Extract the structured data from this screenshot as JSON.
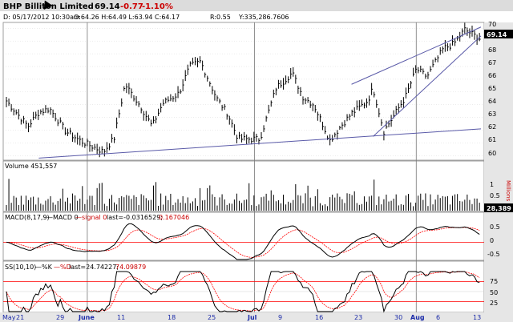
{
  "header": {
    "name": "BHP Billiton Limited",
    "price": "69.14",
    "change": "-0.77",
    "change_pct": "-1.10%"
  },
  "info_line": {
    "date": "D: 05/17/2012 10:30am",
    "ohlc": "O:64.26 H:64.49 L:63.94 C:64.17",
    "r": "R:0.55",
    "y": "Y:335,286.7606"
  },
  "colors": {
    "title_bg": "#dcdcdc",
    "panel_bg": "#ffffff",
    "axis_bg": "#e6e6e6",
    "price": "#000000",
    "trend": "#5a5aa8",
    "signal": "#ff0000",
    "ref": "#ff0000",
    "neg": "#cc0000",
    "grid": "#d0d0d0"
  },
  "price_panel": {
    "last_label": "69.14",
    "ticks": [
      "70",
      "69",
      "68",
      "67",
      "66",
      "65",
      "64",
      "63",
      "62",
      "61",
      "60"
    ]
  },
  "volume_panel": {
    "label": "Volume 451,557",
    "units": "Millions",
    "ticks": [
      "1",
      "0.5"
    ],
    "last_label": "28,389"
  },
  "macd_panel": {
    "label_parts": {
      "name": "MACD(8,17,9)",
      "macd": "—MACD 0",
      "signal": "—signal 0",
      "last": "last=-0.0316529;",
      "last2": "0.167046"
    },
    "ticks": [
      "0.5",
      "0",
      "-0.5"
    ]
  },
  "stoch_panel": {
    "label_parts": {
      "name": "SS(10,10)",
      "k": "—%K",
      "d": "—%D",
      "last": "last=24.74227;",
      "last2": "74.09879"
    },
    "ticks": [
      "75",
      "50",
      "25"
    ]
  },
  "x_axis": {
    "labels": [
      "May",
      "21",
      "29",
      "June",
      "11",
      "18",
      "25",
      "Jul",
      "9",
      "16",
      "23",
      "30",
      "Aug",
      "6",
      "13"
    ]
  },
  "chart_data": [
    {
      "type": "bar",
      "title": "BHP Billiton Limited",
      "ylim": [
        59.7,
        70.4
      ],
      "x_range": [
        "2012-05-17",
        "2012-08-13"
      ],
      "trendlines": [
        {
          "from": [
            "2012-05-23",
            59.8
          ],
          "to": [
            "2012-08-13",
            62.1
          ]
        },
        {
          "from": [
            "2012-07-20",
            65.6
          ],
          "to": [
            "2012-08-13",
            70.1
          ]
        },
        {
          "from": [
            "2012-07-24",
            61.5
          ],
          "to": [
            "2012-08-13",
            69.4
          ]
        }
      ],
      "approx_path": [
        [
          "2012-05-17",
          64.3
        ],
        [
          "2012-05-21",
          62.3
        ],
        [
          "2012-05-23",
          63.4
        ],
        [
          "2012-05-25",
          63.7
        ],
        [
          "2012-05-28",
          61.9
        ],
        [
          "2012-05-31",
          61.1
        ],
        [
          "2012-06-04",
          60.3
        ],
        [
          "2012-06-06",
          61.4
        ],
        [
          "2012-06-08",
          65.6
        ],
        [
          "2012-06-11",
          63.8
        ],
        [
          "2012-06-13",
          62.3
        ],
        [
          "2012-06-15",
          64.1
        ],
        [
          "2012-06-18",
          64.9
        ],
        [
          "2012-06-20",
          67.0
        ],
        [
          "2012-06-22",
          67.4
        ],
        [
          "2012-06-25",
          64.5
        ],
        [
          "2012-06-27",
          63.3
        ],
        [
          "2012-06-29",
          61.3
        ],
        [
          "2012-07-03",
          61.3
        ],
        [
          "2012-07-06",
          65.3
        ],
        [
          "2012-07-09",
          66.5
        ],
        [
          "2012-07-11",
          64.6
        ],
        [
          "2012-07-13",
          64.0
        ],
        [
          "2012-07-16",
          61.2
        ],
        [
          "2012-07-18",
          62.3
        ],
        [
          "2012-07-20",
          63.3
        ],
        [
          "2012-07-23",
          64.3
        ],
        [
          "2012-07-24",
          65.3
        ],
        [
          "2012-07-26",
          61.9
        ],
        [
          "2012-07-30",
          64.6
        ],
        [
          "2012-08-01",
          66.8
        ],
        [
          "2012-08-03",
          66.2
        ],
        [
          "2012-08-06",
          68.4
        ],
        [
          "2012-08-08",
          68.8
        ],
        [
          "2012-08-10",
          69.9
        ],
        [
          "2012-08-13",
          69.14
        ]
      ]
    },
    {
      "type": "bar",
      "title": "Volume 451,557",
      "ylabel": "Millions",
      "ylim": [
        0,
        1.4
      ]
    },
    {
      "type": "line",
      "title": "MACD(8,17,9)",
      "ylim": [
        -0.9,
        1.1
      ],
      "series": [
        {
          "name": "MACD"
        },
        {
          "name": "signal"
        }
      ],
      "last": [
        -0.0316529,
        0.167046
      ]
    },
    {
      "type": "line",
      "title": "SS(10,10)",
      "ylim": [
        0,
        100
      ],
      "series": [
        {
          "name": "%K"
        },
        {
          "name": "%D"
        }
      ],
      "last": [
        24.74227,
        74.09879
      ]
    }
  ]
}
